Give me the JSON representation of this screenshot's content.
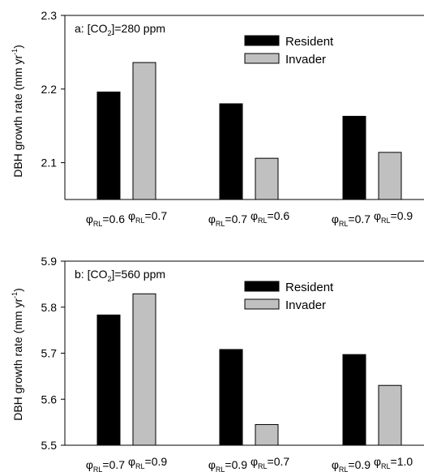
{
  "chart_data": [
    {
      "type": "bar",
      "panel_label": "a: [CO",
      "panel_label_sub": "2",
      "panel_label_tail": "]=280 ppm",
      "ylabel": "DBH growth rate (mm yr",
      "ylabel_sup": "-1",
      "ylabel_tail": ")",
      "ylim": [
        2.05,
        2.3
      ],
      "yticks": [
        "2.1",
        "2.2",
        "2.3"
      ],
      "ytick_values": [
        2.1,
        2.2,
        2.3
      ],
      "grid": false,
      "legend_position": "top-right",
      "series": [
        {
          "name": "Resident",
          "color": "#000000",
          "values": [
            2.196,
            2.18,
            2.163
          ]
        },
        {
          "name": "Invader",
          "color": "#c0c0c0",
          "values": [
            2.236,
            2.106,
            2.114
          ]
        }
      ],
      "group_labels": [
        [
          {
            "sym": "φ",
            "sub": "RL",
            "val": "=0.6"
          },
          {
            "sym": "φ",
            "sub": "RL",
            "val": "=0.7"
          }
        ],
        [
          {
            "sym": "φ",
            "sub": "RL",
            "val": "=0.7"
          },
          {
            "sym": "φ",
            "sub": "RL",
            "val": "=0.6"
          }
        ],
        [
          {
            "sym": "φ",
            "sub": "RL",
            "val": "=0.7"
          },
          {
            "sym": "φ",
            "sub": "RL",
            "val": "=0.9"
          }
        ]
      ]
    },
    {
      "type": "bar",
      "panel_label": "b: [CO",
      "panel_label_sub": "2",
      "panel_label_tail": "]=560 ppm",
      "ylabel": "DBH growth rate (mm yr",
      "ylabel_sup": "-1",
      "ylabel_tail": ")",
      "ylim": [
        5.5,
        5.9
      ],
      "yticks": [
        "5.5",
        "5.6",
        "5.7",
        "5.8",
        "5.9"
      ],
      "ytick_values": [
        5.5,
        5.6,
        5.7,
        5.8,
        5.9
      ],
      "grid": false,
      "legend_position": "top-right",
      "series": [
        {
          "name": "Resident",
          "color": "#000000",
          "values": [
            5.783,
            5.708,
            5.697
          ]
        },
        {
          "name": "Invader",
          "color": "#c0c0c0",
          "values": [
            5.829,
            5.545,
            5.63
          ]
        }
      ],
      "group_labels": [
        [
          {
            "sym": "φ",
            "sub": "RL",
            "val": "=0.7"
          },
          {
            "sym": "φ",
            "sub": "RL",
            "val": "=0.9"
          }
        ],
        [
          {
            "sym": "φ",
            "sub": "RL",
            "val": "=0.9"
          },
          {
            "sym": "φ",
            "sub": "RL",
            "val": "=0.7"
          }
        ],
        [
          {
            "sym": "φ",
            "sub": "RL",
            "val": "=0.9"
          },
          {
            "sym": "φ",
            "sub": "RL",
            "val": "=1.0"
          }
        ]
      ]
    }
  ]
}
